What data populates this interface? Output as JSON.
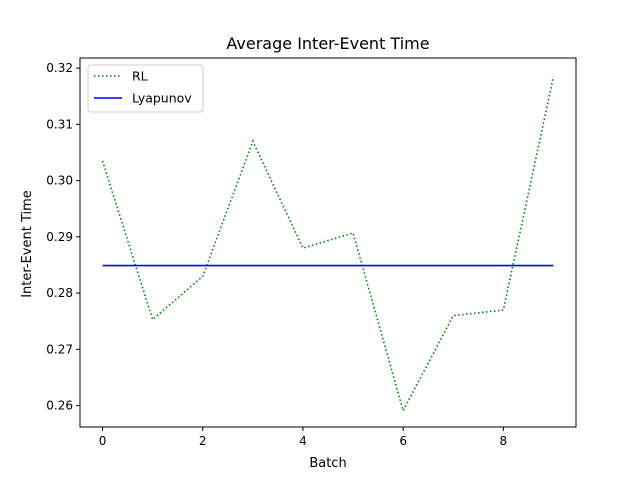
{
  "chart_data": {
    "type": "line",
    "title": "Average Inter-Event Time",
    "xlabel": "Batch",
    "ylabel": "Inter-Event Time",
    "xlim": [
      -0.45,
      9.45
    ],
    "ylim": [
      0.2562,
      0.3218
    ],
    "xticks": [
      0,
      2,
      4,
      6,
      8
    ],
    "xtick_labels": [
      "0",
      "2",
      "4",
      "6",
      "8"
    ],
    "yticks": [
      0.26,
      0.27,
      0.28,
      0.29,
      0.3,
      0.31,
      0.32
    ],
    "ytick_labels": [
      "0.26",
      "0.27",
      "0.28",
      "0.29",
      "0.30",
      "0.31",
      "0.32"
    ],
    "grid": false,
    "legend": "upper-left",
    "x": [
      0,
      1,
      2,
      3,
      4,
      5,
      6,
      7,
      8,
      9
    ],
    "series": [
      {
        "name": "RL",
        "color": "#008000",
        "style": "dotted",
        "values": [
          0.3035,
          0.2753,
          0.283,
          0.307,
          0.288,
          0.2907,
          0.2591,
          0.276,
          0.277,
          0.3185
        ]
      },
      {
        "name": "Lyapunov",
        "color": "#0000ff",
        "style": "solid",
        "values": [
          0.2849,
          0.2849,
          0.2849,
          0.2849,
          0.2849,
          0.2849,
          0.2849,
          0.2849,
          0.2849,
          0.2849
        ]
      }
    ]
  }
}
